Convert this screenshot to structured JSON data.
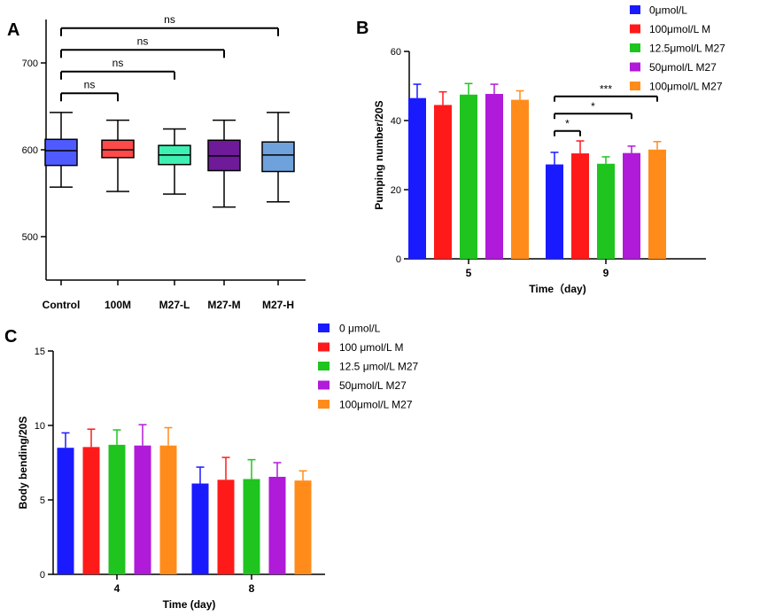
{
  "chart_data": [
    {
      "id": "A",
      "type": "boxplot",
      "panel_label": "A",
      "title": "",
      "xlabel": "",
      "ylabel": "",
      "ylim": [
        450,
        750
      ],
      "yticks": [
        500,
        600,
        700
      ],
      "categories": [
        "Control",
        "100M",
        "M27-L",
        "M27-M",
        "M27-H"
      ],
      "colors": [
        "#4f5bff",
        "#ff4a4a",
        "#3ff0b2",
        "#6e1a99",
        "#6fa2dc"
      ],
      "boxes": [
        {
          "min": 557,
          "q1": 582,
          "median": 599,
          "q3": 612,
          "max": 643
        },
        {
          "min": 552,
          "q1": 591,
          "median": 600,
          "q3": 611,
          "max": 634
        },
        {
          "min": 549,
          "q1": 583,
          "median": 594,
          "q3": 605,
          "max": 624
        },
        {
          "min": 534,
          "q1": 576,
          "median": 593,
          "q3": 611,
          "max": 634
        },
        {
          "min": 540,
          "q1": 575,
          "median": 594,
          "q3": 609,
          "max": 643
        }
      ],
      "significance": [
        {
          "from": 0,
          "to": 1,
          "label": "ns",
          "level": 665
        },
        {
          "from": 0,
          "to": 2,
          "label": "ns",
          "level": 690
        },
        {
          "from": 0,
          "to": 3,
          "label": "ns",
          "level": 715
        },
        {
          "from": 0,
          "to": 4,
          "label": "ns",
          "level": 740
        }
      ]
    },
    {
      "id": "B",
      "type": "bar",
      "panel_label": "B",
      "title": "",
      "xlabel": "Time（day)",
      "ylabel": "Pumping number/20S",
      "ylim": [
        0,
        60
      ],
      "yticks": [
        0,
        20,
        40,
        60
      ],
      "categories": [
        "5",
        "9"
      ],
      "series": [
        {
          "name": "0μmol/L",
          "color": "#1a1aff",
          "values": [
            46.5,
            27.3
          ],
          "errors": [
            4.0,
            3.5
          ]
        },
        {
          "name": "100μmol/L M",
          "color": "#ff1a1a",
          "values": [
            44.5,
            30.5
          ],
          "errors": [
            3.8,
            3.6
          ]
        },
        {
          "name": "12.5μmol/L M27",
          "color": "#1fc41f",
          "values": [
            47.5,
            27.5
          ],
          "errors": [
            3.2,
            2.0
          ]
        },
        {
          "name": " 50μmol/L M27",
          "color": "#b01ad9",
          "values": [
            47.7,
            30.6
          ],
          "errors": [
            2.8,
            2.0
          ]
        },
        {
          "name": "100μmol/L M27",
          "color": "#ff8c1a",
          "values": [
            46.0,
            31.6
          ],
          "errors": [
            2.6,
            2.3
          ]
        }
      ],
      "significance": [
        {
          "category": 1,
          "from": 0,
          "to": 1,
          "label": "*",
          "level": 37
        },
        {
          "category": 1,
          "from": 0,
          "to": 3,
          "label": "*",
          "level": 42
        },
        {
          "category": 1,
          "from": 0,
          "to": 4,
          "label": "***",
          "level": 47
        }
      ],
      "legend_position": "top-right"
    },
    {
      "id": "C",
      "type": "bar",
      "panel_label": "C",
      "title": "",
      "xlabel": "Time (day)",
      "ylabel": "Body bending/20S",
      "ylim": [
        0,
        15
      ],
      "yticks": [
        0,
        5,
        10,
        15
      ],
      "categories": [
        "4",
        "8"
      ],
      "series": [
        {
          "name": "0 μmol/L",
          "color": "#1a1aff",
          "values": [
            8.5,
            6.1
          ],
          "errors": [
            1.0,
            1.1
          ]
        },
        {
          "name": "100 μmol/L M",
          "color": "#ff1a1a",
          "values": [
            8.55,
            6.35
          ],
          "errors": [
            1.2,
            1.5
          ]
        },
        {
          "name": "12.5 μmol/L M27",
          "color": "#1fc41f",
          "values": [
            8.7,
            6.4
          ],
          "errors": [
            1.0,
            1.3
          ]
        },
        {
          "name": "50μmol/L M27",
          "color": "#b01ad9",
          "values": [
            8.65,
            6.55
          ],
          "errors": [
            1.4,
            0.95
          ]
        },
        {
          "name": "100μmol/L M27",
          "color": "#ff8c1a",
          "values": [
            8.65,
            6.3
          ],
          "errors": [
            1.2,
            0.65
          ]
        }
      ],
      "legend_position": "top-right"
    }
  ]
}
